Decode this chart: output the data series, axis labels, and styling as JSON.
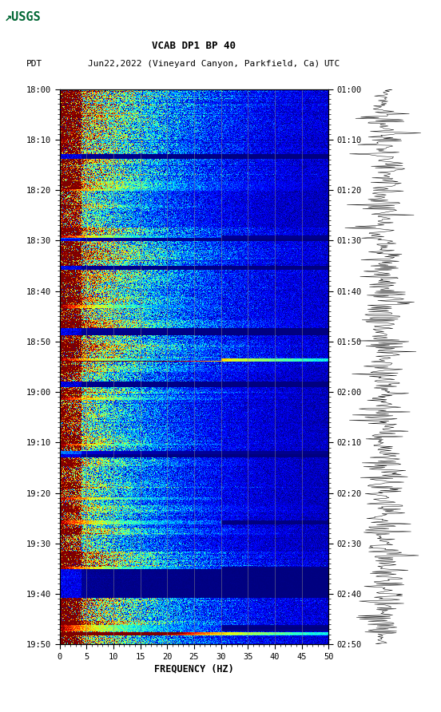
{
  "title_line1": "VCAB DP1 BP 40",
  "title_line2_pdt": "PDT   Jun22,2022 (Vineyard Canyon, Parkfield, Ca)        UTC",
  "xlabel": "FREQUENCY (HZ)",
  "freq_min": 0,
  "freq_max": 50,
  "left_yticks": [
    "18:00",
    "18:10",
    "18:20",
    "18:30",
    "18:40",
    "18:50",
    "19:00",
    "19:10",
    "19:20",
    "19:30",
    "19:40",
    "19:50"
  ],
  "right_yticks": [
    "01:00",
    "01:10",
    "01:20",
    "01:30",
    "01:40",
    "01:50",
    "02:00",
    "02:10",
    "02:20",
    "02:30",
    "02:40",
    "02:50"
  ],
  "xticks": [
    0,
    5,
    10,
    15,
    20,
    25,
    30,
    35,
    40,
    45,
    50
  ],
  "bg_color": "white",
  "spectrogram_cmap": "jet",
  "fig_width": 5.52,
  "fig_height": 8.92,
  "dpi": 100,
  "seed": 12345,
  "n_time": 720,
  "n_freq": 500,
  "vgrid_freqs": [
    5,
    10,
    15,
    20,
    25,
    30,
    35,
    40,
    45
  ],
  "dark_band_times": [
    85,
    190,
    230,
    310,
    380,
    470,
    560,
    620,
    695
  ],
  "dark_band_widths": [
    6,
    8,
    5,
    10,
    7,
    8,
    5,
    40,
    8
  ],
  "event_times": [
    30,
    60,
    90,
    120,
    150,
    180,
    210,
    240,
    270,
    300,
    330,
    360,
    390,
    420,
    450,
    480,
    510,
    540,
    570,
    600,
    630,
    660,
    690
  ],
  "bright_line_times": [
    190,
    350,
    470,
    620,
    695,
    700,
    705
  ],
  "low_freq_cutoff": 80,
  "mid_freq_cutoff": 200
}
